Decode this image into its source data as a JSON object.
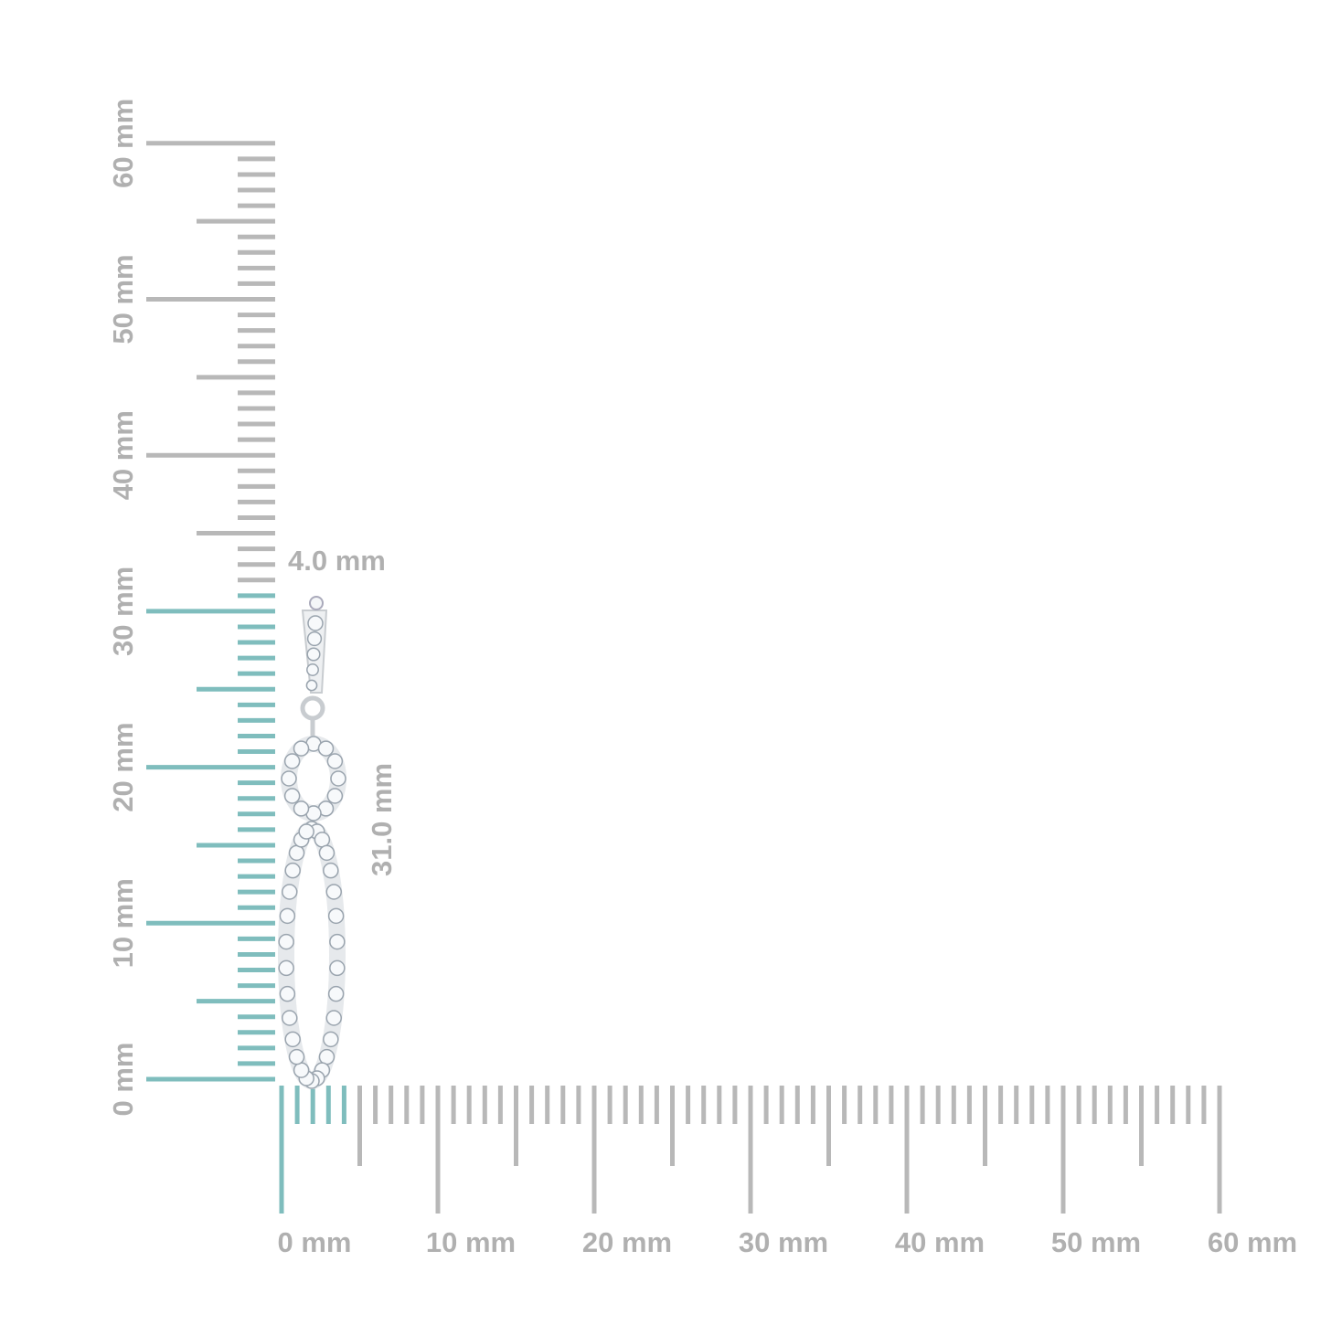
{
  "rulers": {
    "vertical": {
      "labels": [
        "0 mm",
        "10 mm",
        "20 mm",
        "30 mm",
        "40 mm",
        "50 mm",
        "60 mm"
      ]
    },
    "horizontal": {
      "labels": [
        "0 mm",
        "10 mm",
        "20 mm",
        "30 mm",
        "40 mm",
        "50 mm",
        "60 mm"
      ]
    }
  },
  "dimensions": {
    "width": "4.0 mm",
    "height": "31.0 mm"
  }
}
